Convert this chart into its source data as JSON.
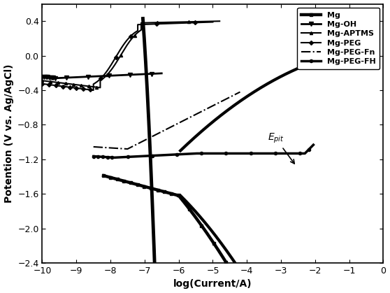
{
  "xlabel": "log(Current/A)",
  "ylabel": "Potention (V vs. Ag/AgCl)",
  "xlim": [
    -10,
    0
  ],
  "ylim": [
    -2.4,
    0.6
  ],
  "xticks": [
    -10,
    -9,
    -8,
    -7,
    -6,
    -5,
    -4,
    -3,
    -2,
    -1,
    0
  ],
  "yticks": [
    -2.4,
    -2.0,
    -1.6,
    -1.2,
    -0.8,
    -0.4,
    0.0,
    0.4
  ],
  "bg_color": "#ffffff",
  "line_color": "#000000"
}
